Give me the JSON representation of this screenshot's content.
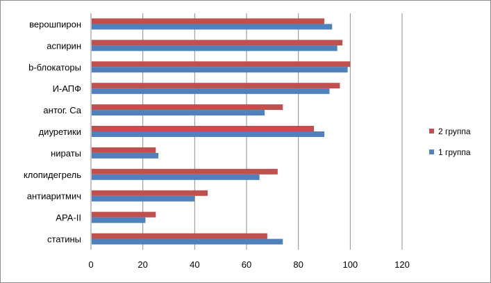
{
  "chart_data": {
    "type": "bar",
    "orientation": "horizontal",
    "categories": [
      "верошпирон",
      "аспирин",
      "b-блокаторы",
      "И-АПФ",
      "антог. Са",
      "диуретики",
      "нираты",
      "клопидегрель",
      "антиаритмич",
      "АРА-II",
      "статины"
    ],
    "series": [
      {
        "name": "2 группа",
        "color": "#c0504d",
        "values": [
          90,
          97,
          100,
          96,
          74,
          86,
          25,
          72,
          45,
          25,
          68
        ]
      },
      {
        "name": "1 группа",
        "color": "#4f81bd",
        "values": [
          93,
          95,
          99,
          92,
          67,
          90,
          26,
          65,
          40,
          21,
          74
        ]
      }
    ],
    "xlim": [
      0,
      120
    ],
    "xticks": [
      "0",
      "20",
      "40",
      "60",
      "80",
      "100",
      "120"
    ],
    "grid": "vertical",
    "legend": {
      "position": "right",
      "entries": [
        {
          "label": "2 группа",
          "color": "#c0504d"
        },
        {
          "label": "1 группа",
          "color": "#4f81bd"
        }
      ]
    }
  }
}
